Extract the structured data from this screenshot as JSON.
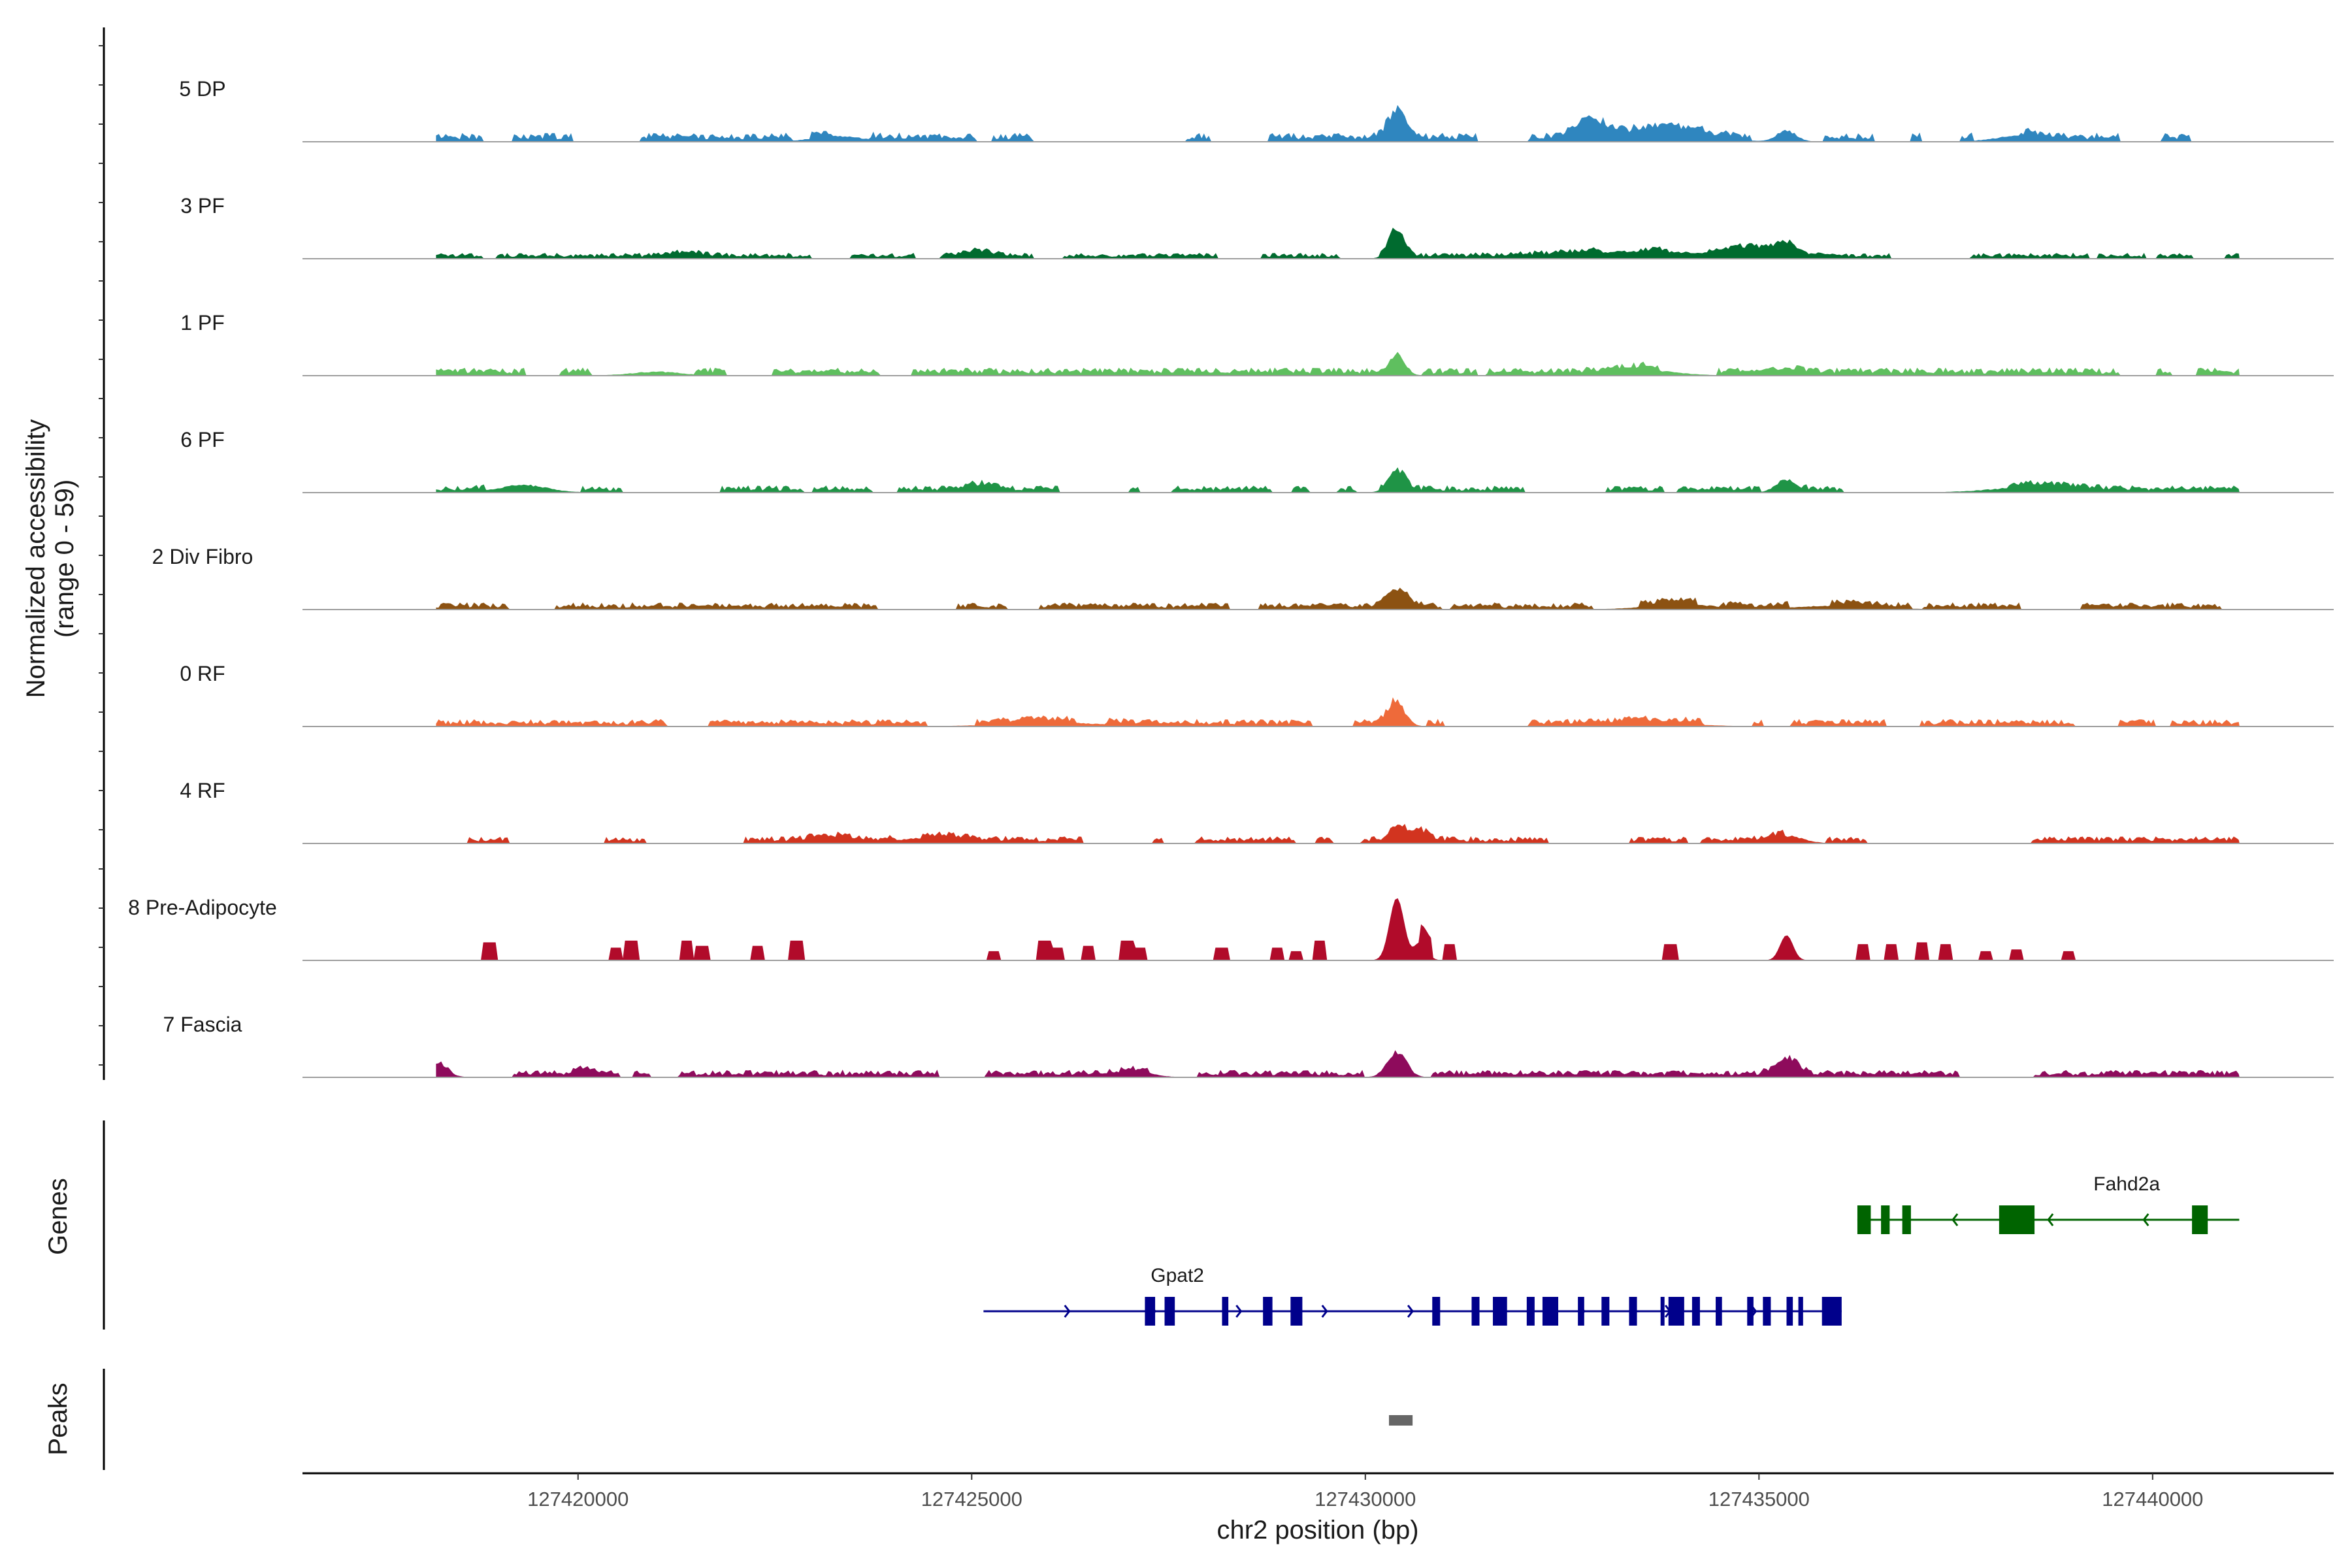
{
  "chart_data": {
    "type": "coverage",
    "yaxis": {
      "title_line1": "Normalized accessibility",
      "title_line2": "(range 0 - 59)",
      "range": [
        0,
        59
      ]
    },
    "xaxis": {
      "title": "chr2 position (bp)",
      "range": [
        127416500,
        127442300
      ],
      "ticks": [
        127420000,
        127425000,
        127430000,
        127435000,
        127440000
      ],
      "tick_labels": [
        "127420000",
        "127425000",
        "127430000",
        "127435000",
        "127440000"
      ]
    },
    "region": [
      127418200,
      127441100
    ],
    "tracks": [
      {
        "name": "5 DP",
        "color": "#2f86bf",
        "base": 2.8,
        "noise": 0.35,
        "sparse": false,
        "peaks": [
          [
            127430400,
            16,
            110
          ],
          [
            127432850,
            9,
            200
          ],
          [
            127433800,
            6,
            500
          ],
          [
            127435350,
            6,
            120
          ],
          [
            127423300,
            3,
            300
          ],
          [
            127438300,
            3,
            300
          ]
        ]
      },
      {
        "name": "3 PF",
        "color": "#006b2f",
        "base": 1.8,
        "noise": 0.35,
        "sparse": false,
        "peaks": [
          [
            127430400,
            15,
            100
          ],
          [
            127433500,
            4,
            900
          ],
          [
            127434900,
            4,
            300
          ],
          [
            127435350,
            6,
            150
          ],
          [
            127425100,
            3,
            200
          ],
          [
            127421400,
            2,
            200
          ]
        ]
      },
      {
        "name": "1 PF",
        "color": "#5fbf5f",
        "base": 2.5,
        "noise": 0.35,
        "sparse": false,
        "peaks": [
          [
            127430400,
            12,
            100
          ],
          [
            127435350,
            4,
            150
          ],
          [
            127433500,
            3,
            400
          ],
          [
            127421000,
            2,
            300
          ]
        ]
      },
      {
        "name": "6 PF",
        "color": "#1f9446",
        "base": 2.2,
        "noise": 0.4,
        "sparse": false,
        "peaks": [
          [
            127430400,
            10,
            110
          ],
          [
            127435350,
            7,
            130
          ],
          [
            127419300,
            4,
            300
          ],
          [
            127425100,
            3,
            200
          ],
          [
            127438500,
            3,
            500
          ]
        ]
      },
      {
        "name": "2 Div Fibro",
        "color": "#8c5212",
        "base": 2.2,
        "noise": 0.35,
        "sparse": false,
        "peaks": [
          [
            127430400,
            9,
            140
          ],
          [
            127434000,
            3,
            400
          ],
          [
            127436000,
            2,
            500
          ]
        ]
      },
      {
        "name": "0 RF",
        "color": "#ee6a3a",
        "base": 2.3,
        "noise": 0.3,
        "sparse": false,
        "peaks": [
          [
            127430400,
            12,
            110
          ],
          [
            127433600,
            2,
            500
          ],
          [
            127426000,
            2,
            600
          ]
        ]
      },
      {
        "name": "4 RF",
        "color": "#d2341f",
        "base": 2.2,
        "noise": 0.35,
        "sparse": false,
        "peaks": [
          [
            127430400,
            10,
            110
          ],
          [
            127423200,
            4,
            200
          ],
          [
            127430700,
            5,
            120
          ],
          [
            127435350,
            4,
            200
          ],
          [
            127424500,
            3,
            400
          ]
        ]
      },
      {
        "name": "8 Pre-Adipocyte",
        "color": "#b10b2a",
        "base": 0,
        "noise": 0,
        "sparse": true,
        "peaks": [
          [
            127430400,
            35,
            90
          ],
          [
            127430700,
            10,
            80
          ],
          [
            127435350,
            14,
            80
          ]
        ]
      },
      {
        "name": "7 Fascia",
        "color": "#8e0b5c",
        "base": 2.3,
        "noise": 0.4,
        "sparse": false,
        "peaks": [
          [
            127430400,
            14,
            120
          ],
          [
            127435350,
            9,
            140
          ],
          [
            127418250,
            5,
            120
          ],
          [
            127420100,
            4,
            120
          ],
          [
            127427100,
            3,
            200
          ]
        ]
      }
    ],
    "genes": [
      {
        "name": "Fahd2a",
        "strand": "-",
        "start": 127436250,
        "end": 127441100,
        "color": "#006400",
        "row": 0,
        "exons": [
          [
            127436250,
            127436420
          ],
          [
            127436550,
            127436660
          ],
          [
            127436820,
            127436930
          ],
          [
            127438050,
            127438500
          ],
          [
            127440500,
            127440700
          ]
        ]
      },
      {
        "name": "Gpat2",
        "strand": "+",
        "start": 127425150,
        "end": 127436050,
        "color": "#00008b",
        "row": 1,
        "exons": [
          [
            127427200,
            127427330
          ],
          [
            127427450,
            127427580
          ],
          [
            127428180,
            127428260
          ],
          [
            127428700,
            127428820
          ],
          [
            127429050,
            127429200
          ],
          [
            127430850,
            127430950
          ],
          [
            127431350,
            127431450
          ],
          [
            127431620,
            127431800
          ],
          [
            127432050,
            127432150
          ],
          [
            127432250,
            127432450
          ],
          [
            127432700,
            127432780
          ],
          [
            127433000,
            127433100
          ],
          [
            127433350,
            127433450
          ],
          [
            127433750,
            127433800
          ],
          [
            127433850,
            127434050
          ],
          [
            127434150,
            127434250
          ],
          [
            127434450,
            127434530
          ],
          [
            127434850,
            127434930
          ],
          [
            127435050,
            127435150
          ],
          [
            127435350,
            127435430
          ],
          [
            127435500,
            127435560
          ],
          [
            127435800,
            127436050
          ]
        ]
      }
    ],
    "peaks_track": [
      {
        "start": 127430300,
        "end": 127430600,
        "color": "#666666"
      }
    ],
    "side_titles": {
      "genes": "Genes",
      "peaks": "Peaks"
    }
  }
}
